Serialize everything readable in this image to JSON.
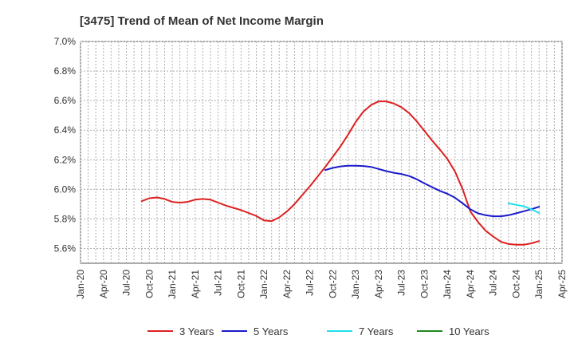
{
  "chart_data": {
    "type": "line",
    "title": "[3475]  Trend of Mean of Net Income Margin",
    "y_ticks": [
      "7.0%",
      "6.8%",
      "6.6%",
      "6.4%",
      "6.2%",
      "6.0%",
      "5.8%",
      "5.6%"
    ],
    "y_tick_values": [
      7.0,
      6.8,
      6.6,
      6.4,
      6.2,
      6.0,
      5.8,
      5.6
    ],
    "ylim": [
      5.5,
      7.0
    ],
    "x_ticks": [
      "Jan-20",
      "Apr-20",
      "Jul-20",
      "Oct-20",
      "Jan-21",
      "Apr-21",
      "Jul-21",
      "Oct-21",
      "Jan-22",
      "Apr-22",
      "Jul-22",
      "Oct-22",
      "Jan-23",
      "Apr-23",
      "Jul-23",
      "Oct-23",
      "Jan-24",
      "Apr-24",
      "Jul-24",
      "Oct-24",
      "Jan-25",
      "Apr-25"
    ],
    "x_start": "2020-01",
    "x_end": "2025-04",
    "grid": true,
    "legend_position": "bottom",
    "series": [
      {
        "name": "3 Years",
        "color": "#dd2020",
        "points": [
          [
            "2020-09",
            5.92
          ],
          [
            "2020-10",
            5.94
          ],
          [
            "2020-11",
            5.945
          ],
          [
            "2020-12",
            5.935
          ],
          [
            "2021-01",
            5.915
          ],
          [
            "2021-02",
            5.91
          ],
          [
            "2021-03",
            5.915
          ],
          [
            "2021-04",
            5.93
          ],
          [
            "2021-05",
            5.935
          ],
          [
            "2021-06",
            5.93
          ],
          [
            "2021-07",
            5.91
          ],
          [
            "2021-08",
            5.89
          ],
          [
            "2021-09",
            5.875
          ],
          [
            "2021-10",
            5.86
          ],
          [
            "2021-11",
            5.84
          ],
          [
            "2021-12",
            5.82
          ],
          [
            "2022-01",
            5.79
          ],
          [
            "2022-02",
            5.785
          ],
          [
            "2022-03",
            5.81
          ],
          [
            "2022-04",
            5.85
          ],
          [
            "2022-05",
            5.9
          ],
          [
            "2022-06",
            5.96
          ],
          [
            "2022-07",
            6.02
          ],
          [
            "2022-08",
            6.085
          ],
          [
            "2022-09",
            6.15
          ],
          [
            "2022-10",
            6.22
          ],
          [
            "2022-11",
            6.29
          ],
          [
            "2022-12",
            6.37
          ],
          [
            "2023-01",
            6.455
          ],
          [
            "2023-02",
            6.525
          ],
          [
            "2023-03",
            6.57
          ],
          [
            "2023-04",
            6.595
          ],
          [
            "2023-05",
            6.595
          ],
          [
            "2023-06",
            6.58
          ],
          [
            "2023-07",
            6.555
          ],
          [
            "2023-08",
            6.515
          ],
          [
            "2023-09",
            6.46
          ],
          [
            "2023-10",
            6.395
          ],
          [
            "2023-11",
            6.33
          ],
          [
            "2023-12",
            6.27
          ],
          [
            "2024-01",
            6.205
          ],
          [
            "2024-02",
            6.12
          ],
          [
            "2024-03",
            6.0
          ],
          [
            "2024-04",
            5.85
          ],
          [
            "2024-05",
            5.78
          ],
          [
            "2024-06",
            5.72
          ],
          [
            "2024-07",
            5.68
          ],
          [
            "2024-08",
            5.645
          ],
          [
            "2024-09",
            5.63
          ],
          [
            "2024-10",
            5.625
          ],
          [
            "2024-11",
            5.625
          ],
          [
            "2024-12",
            5.635
          ],
          [
            "2025-01",
            5.65
          ]
        ]
      },
      {
        "name": "5 Years",
        "color": "#1a1acc",
        "points": [
          [
            "2022-09",
            6.13
          ],
          [
            "2022-10",
            6.145
          ],
          [
            "2022-11",
            6.155
          ],
          [
            "2022-12",
            6.16
          ],
          [
            "2023-01",
            6.16
          ],
          [
            "2023-02",
            6.158
          ],
          [
            "2023-03",
            6.152
          ],
          [
            "2023-04",
            6.138
          ],
          [
            "2023-05",
            6.123
          ],
          [
            "2023-06",
            6.112
          ],
          [
            "2023-07",
            6.103
          ],
          [
            "2023-08",
            6.09
          ],
          [
            "2023-09",
            6.068
          ],
          [
            "2023-10",
            6.04
          ],
          [
            "2023-11",
            6.015
          ],
          [
            "2023-12",
            5.99
          ],
          [
            "2024-01",
            5.97
          ],
          [
            "2024-02",
            5.943
          ],
          [
            "2024-03",
            5.905
          ],
          [
            "2024-04",
            5.865
          ],
          [
            "2024-05",
            5.838
          ],
          [
            "2024-06",
            5.825
          ],
          [
            "2024-07",
            5.818
          ],
          [
            "2024-08",
            5.818
          ],
          [
            "2024-09",
            5.825
          ],
          [
            "2024-10",
            5.838
          ],
          [
            "2024-11",
            5.852
          ],
          [
            "2024-12",
            5.866
          ],
          [
            "2025-01",
            5.882
          ]
        ]
      },
      {
        "name": "7 Years",
        "color": "#20e0ee",
        "points": [
          [
            "2024-09",
            5.905
          ],
          [
            "2024-10",
            5.895
          ],
          [
            "2024-11",
            5.885
          ],
          [
            "2024-12",
            5.865
          ],
          [
            "2025-01",
            5.84
          ]
        ]
      },
      {
        "name": "10 Years",
        "color": "#1f8a1f",
        "points": []
      }
    ]
  }
}
